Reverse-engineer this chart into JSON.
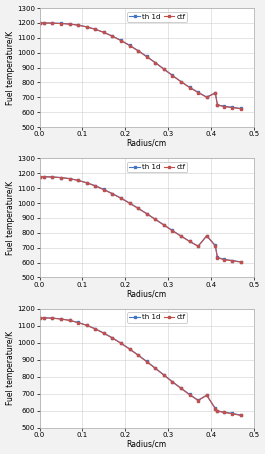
{
  "subplots": [
    {
      "th1d_x": [
        0.0,
        0.01,
        0.03,
        0.05,
        0.07,
        0.09,
        0.11,
        0.13,
        0.15,
        0.17,
        0.19,
        0.21,
        0.23,
        0.25,
        0.27,
        0.29,
        0.31,
        0.33,
        0.35,
        0.37,
        0.39,
        0.41,
        0.415,
        0.43,
        0.45,
        0.47
      ],
      "th1d_y": [
        1200,
        1200,
        1199,
        1197,
        1193,
        1186,
        1174,
        1158,
        1137,
        1112,
        1083,
        1050,
        1014,
        975,
        934,
        891,
        848,
        806,
        768,
        734,
        702,
        730,
        650,
        640,
        633,
        625
      ],
      "ctf_x": [
        0.0,
        0.01,
        0.03,
        0.05,
        0.07,
        0.09,
        0.11,
        0.13,
        0.15,
        0.17,
        0.19,
        0.21,
        0.23,
        0.25,
        0.27,
        0.29,
        0.31,
        0.33,
        0.35,
        0.37,
        0.39,
        0.41,
        0.415,
        0.43,
        0.45,
        0.47
      ],
      "ctf_y": [
        1200,
        1200,
        1198,
        1196,
        1192,
        1185,
        1173,
        1157,
        1136,
        1110,
        1081,
        1048,
        1012,
        973,
        932,
        889,
        846,
        804,
        766,
        732,
        700,
        728,
        648,
        638,
        631,
        623
      ],
      "ylim": [
        500,
        1300
      ],
      "yticks": [
        500,
        600,
        700,
        800,
        900,
        1000,
        1100,
        1200,
        1300
      ]
    },
    {
      "th1d_x": [
        0.0,
        0.01,
        0.03,
        0.05,
        0.07,
        0.09,
        0.11,
        0.13,
        0.15,
        0.17,
        0.19,
        0.21,
        0.23,
        0.25,
        0.27,
        0.29,
        0.31,
        0.33,
        0.35,
        0.37,
        0.39,
        0.41,
        0.415,
        0.43,
        0.45,
        0.47
      ],
      "th1d_y": [
        1175,
        1178,
        1176,
        1172,
        1165,
        1153,
        1137,
        1117,
        1092,
        1064,
        1034,
        1001,
        966,
        930,
        892,
        854,
        816,
        779,
        744,
        711,
        781,
        715,
        635,
        622,
        614,
        605
      ],
      "ctf_x": [
        0.0,
        0.01,
        0.03,
        0.05,
        0.07,
        0.09,
        0.11,
        0.13,
        0.15,
        0.17,
        0.19,
        0.21,
        0.23,
        0.25,
        0.27,
        0.29,
        0.31,
        0.33,
        0.35,
        0.37,
        0.39,
        0.41,
        0.415,
        0.43,
        0.45,
        0.47
      ],
      "ctf_y": [
        1175,
        1177,
        1175,
        1171,
        1164,
        1152,
        1136,
        1115,
        1090,
        1062,
        1032,
        999,
        964,
        928,
        890,
        852,
        814,
        777,
        742,
        709,
        779,
        713,
        633,
        620,
        612,
        603
      ],
      "ylim": [
        500,
        1300
      ],
      "yticks": [
        500,
        600,
        700,
        800,
        900,
        1000,
        1100,
        1200,
        1300
      ]
    },
    {
      "th1d_x": [
        0.0,
        0.01,
        0.03,
        0.05,
        0.07,
        0.09,
        0.11,
        0.13,
        0.15,
        0.17,
        0.19,
        0.21,
        0.23,
        0.25,
        0.27,
        0.29,
        0.31,
        0.33,
        0.35,
        0.37,
        0.39,
        0.41,
        0.415,
        0.43,
        0.45,
        0.47
      ],
      "th1d_y": [
        1145,
        1148,
        1146,
        1141,
        1133,
        1120,
        1104,
        1083,
        1058,
        1030,
        999,
        965,
        929,
        891,
        852,
        812,
        772,
        734,
        697,
        663,
        693,
        615,
        600,
        593,
        585,
        575
      ],
      "ctf_x": [
        0.0,
        0.01,
        0.03,
        0.05,
        0.07,
        0.09,
        0.11,
        0.13,
        0.15,
        0.17,
        0.19,
        0.21,
        0.23,
        0.25,
        0.27,
        0.29,
        0.31,
        0.33,
        0.35,
        0.37,
        0.39,
        0.41,
        0.415,
        0.43,
        0.45,
        0.47
      ],
      "ctf_y": [
        1145,
        1147,
        1145,
        1140,
        1132,
        1119,
        1103,
        1082,
        1056,
        1028,
        997,
        963,
        927,
        889,
        850,
        810,
        770,
        732,
        695,
        661,
        691,
        613,
        598,
        591,
        583,
        573
      ],
      "ylim": [
        500,
        1200
      ],
      "yticks": [
        500,
        600,
        700,
        800,
        900,
        1000,
        1100,
        1200
      ]
    }
  ],
  "legend": [
    "th 1d",
    "ctf"
  ],
  "ylabel": "Fuel temperature/K",
  "xlabel": "Radius/cm",
  "xlim": [
    0,
    0.5
  ],
  "xticks": [
    0,
    0.1,
    0.2,
    0.3,
    0.4,
    0.5
  ],
  "th1d_color": "#4472C4",
  "ctf_color": "#C0504D",
  "marker": "s",
  "markersize": 2.0,
  "linewidth": 0.8,
  "fontsize_label": 5.5,
  "fontsize_tick": 5.0,
  "fontsize_legend": 5.0,
  "bg_color": "#F2F2F2",
  "plot_bg": "#FFFFFF"
}
